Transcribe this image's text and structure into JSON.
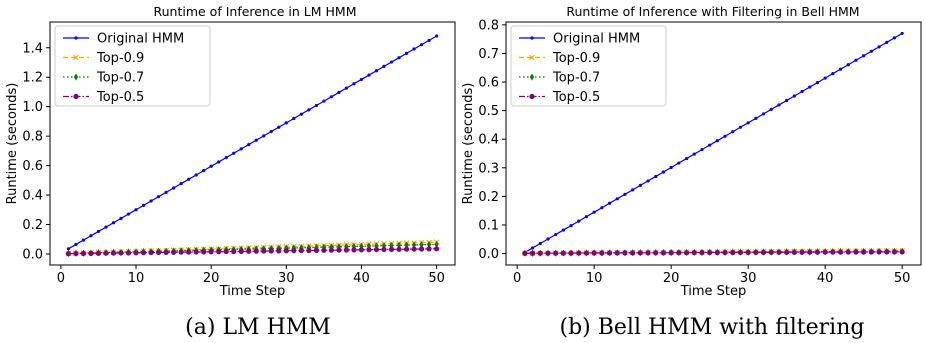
{
  "chart_data": [
    {
      "type": "line",
      "title": "Runtime of Inference in LM HMM",
      "caption": "(a) LM HMM",
      "xlabel": "Time Step",
      "ylabel": "Runtime (seconds)",
      "xlim": [
        -1.45,
        52.45
      ],
      "ylim": [
        -0.075,
        1.575
      ],
      "xticks": [
        0,
        10,
        20,
        30,
        40,
        50
      ],
      "yticks": [
        0.0,
        0.2,
        0.4,
        0.6,
        0.8,
        1.0,
        1.2,
        1.4
      ],
      "ytick_labels": [
        "0.0",
        "0.2",
        "0.4",
        "0.6",
        "0.8",
        "1.0",
        "1.2",
        "1.4"
      ],
      "x_range": [
        1,
        50
      ],
      "legend_position": "top-left",
      "grid": false,
      "series": [
        {
          "name": "Original HMM",
          "start": 0.035,
          "end": 1.48,
          "color": "#0000ff",
          "marker": "dot",
          "dash": "solid"
        },
        {
          "name": "Top-0.9",
          "start": 0.003,
          "end": 0.08,
          "color": "#ffa500",
          "marker": "x",
          "dash": "dashed"
        },
        {
          "name": "Top-0.7",
          "start": 0.003,
          "end": 0.065,
          "color": "#008000",
          "marker": "diamond",
          "dash": "dotted"
        },
        {
          "name": "Top-0.5",
          "start": 0.002,
          "end": 0.035,
          "color": "#800080",
          "marker": "circle",
          "dash": "dashdot"
        }
      ]
    },
    {
      "type": "line",
      "title": "Runtime of Inference with Filtering in Bell HMM",
      "caption": "(b) Bell HMM with filtering",
      "xlabel": "Time Step",
      "ylabel": "Runtime (seconds)",
      "xlim": [
        -1.45,
        52.45
      ],
      "ylim": [
        -0.04,
        0.81
      ],
      "xticks": [
        0,
        10,
        20,
        30,
        40,
        50
      ],
      "yticks": [
        0.0,
        0.1,
        0.2,
        0.3,
        0.4,
        0.5,
        0.6,
        0.7,
        0.8
      ],
      "ytick_labels": [
        "0.0",
        "0.1",
        "0.2",
        "0.3",
        "0.4",
        "0.5",
        "0.6",
        "0.7",
        "0.8"
      ],
      "x_range": [
        1,
        50
      ],
      "legend_position": "top-left",
      "grid": false,
      "series": [
        {
          "name": "Original HMM",
          "start": 0.004,
          "end": 0.77,
          "color": "#0000ff",
          "marker": "dot",
          "dash": "solid"
        },
        {
          "name": "Top-0.9",
          "start": 0.001,
          "end": 0.01,
          "color": "#ffa500",
          "marker": "x",
          "dash": "dashed"
        },
        {
          "name": "Top-0.7",
          "start": 0.001,
          "end": 0.008,
          "color": "#008000",
          "marker": "diamond",
          "dash": "dotted"
        },
        {
          "name": "Top-0.5",
          "start": 0.001,
          "end": 0.006,
          "color": "#800080",
          "marker": "circle",
          "dash": "dashdot"
        }
      ]
    }
  ]
}
